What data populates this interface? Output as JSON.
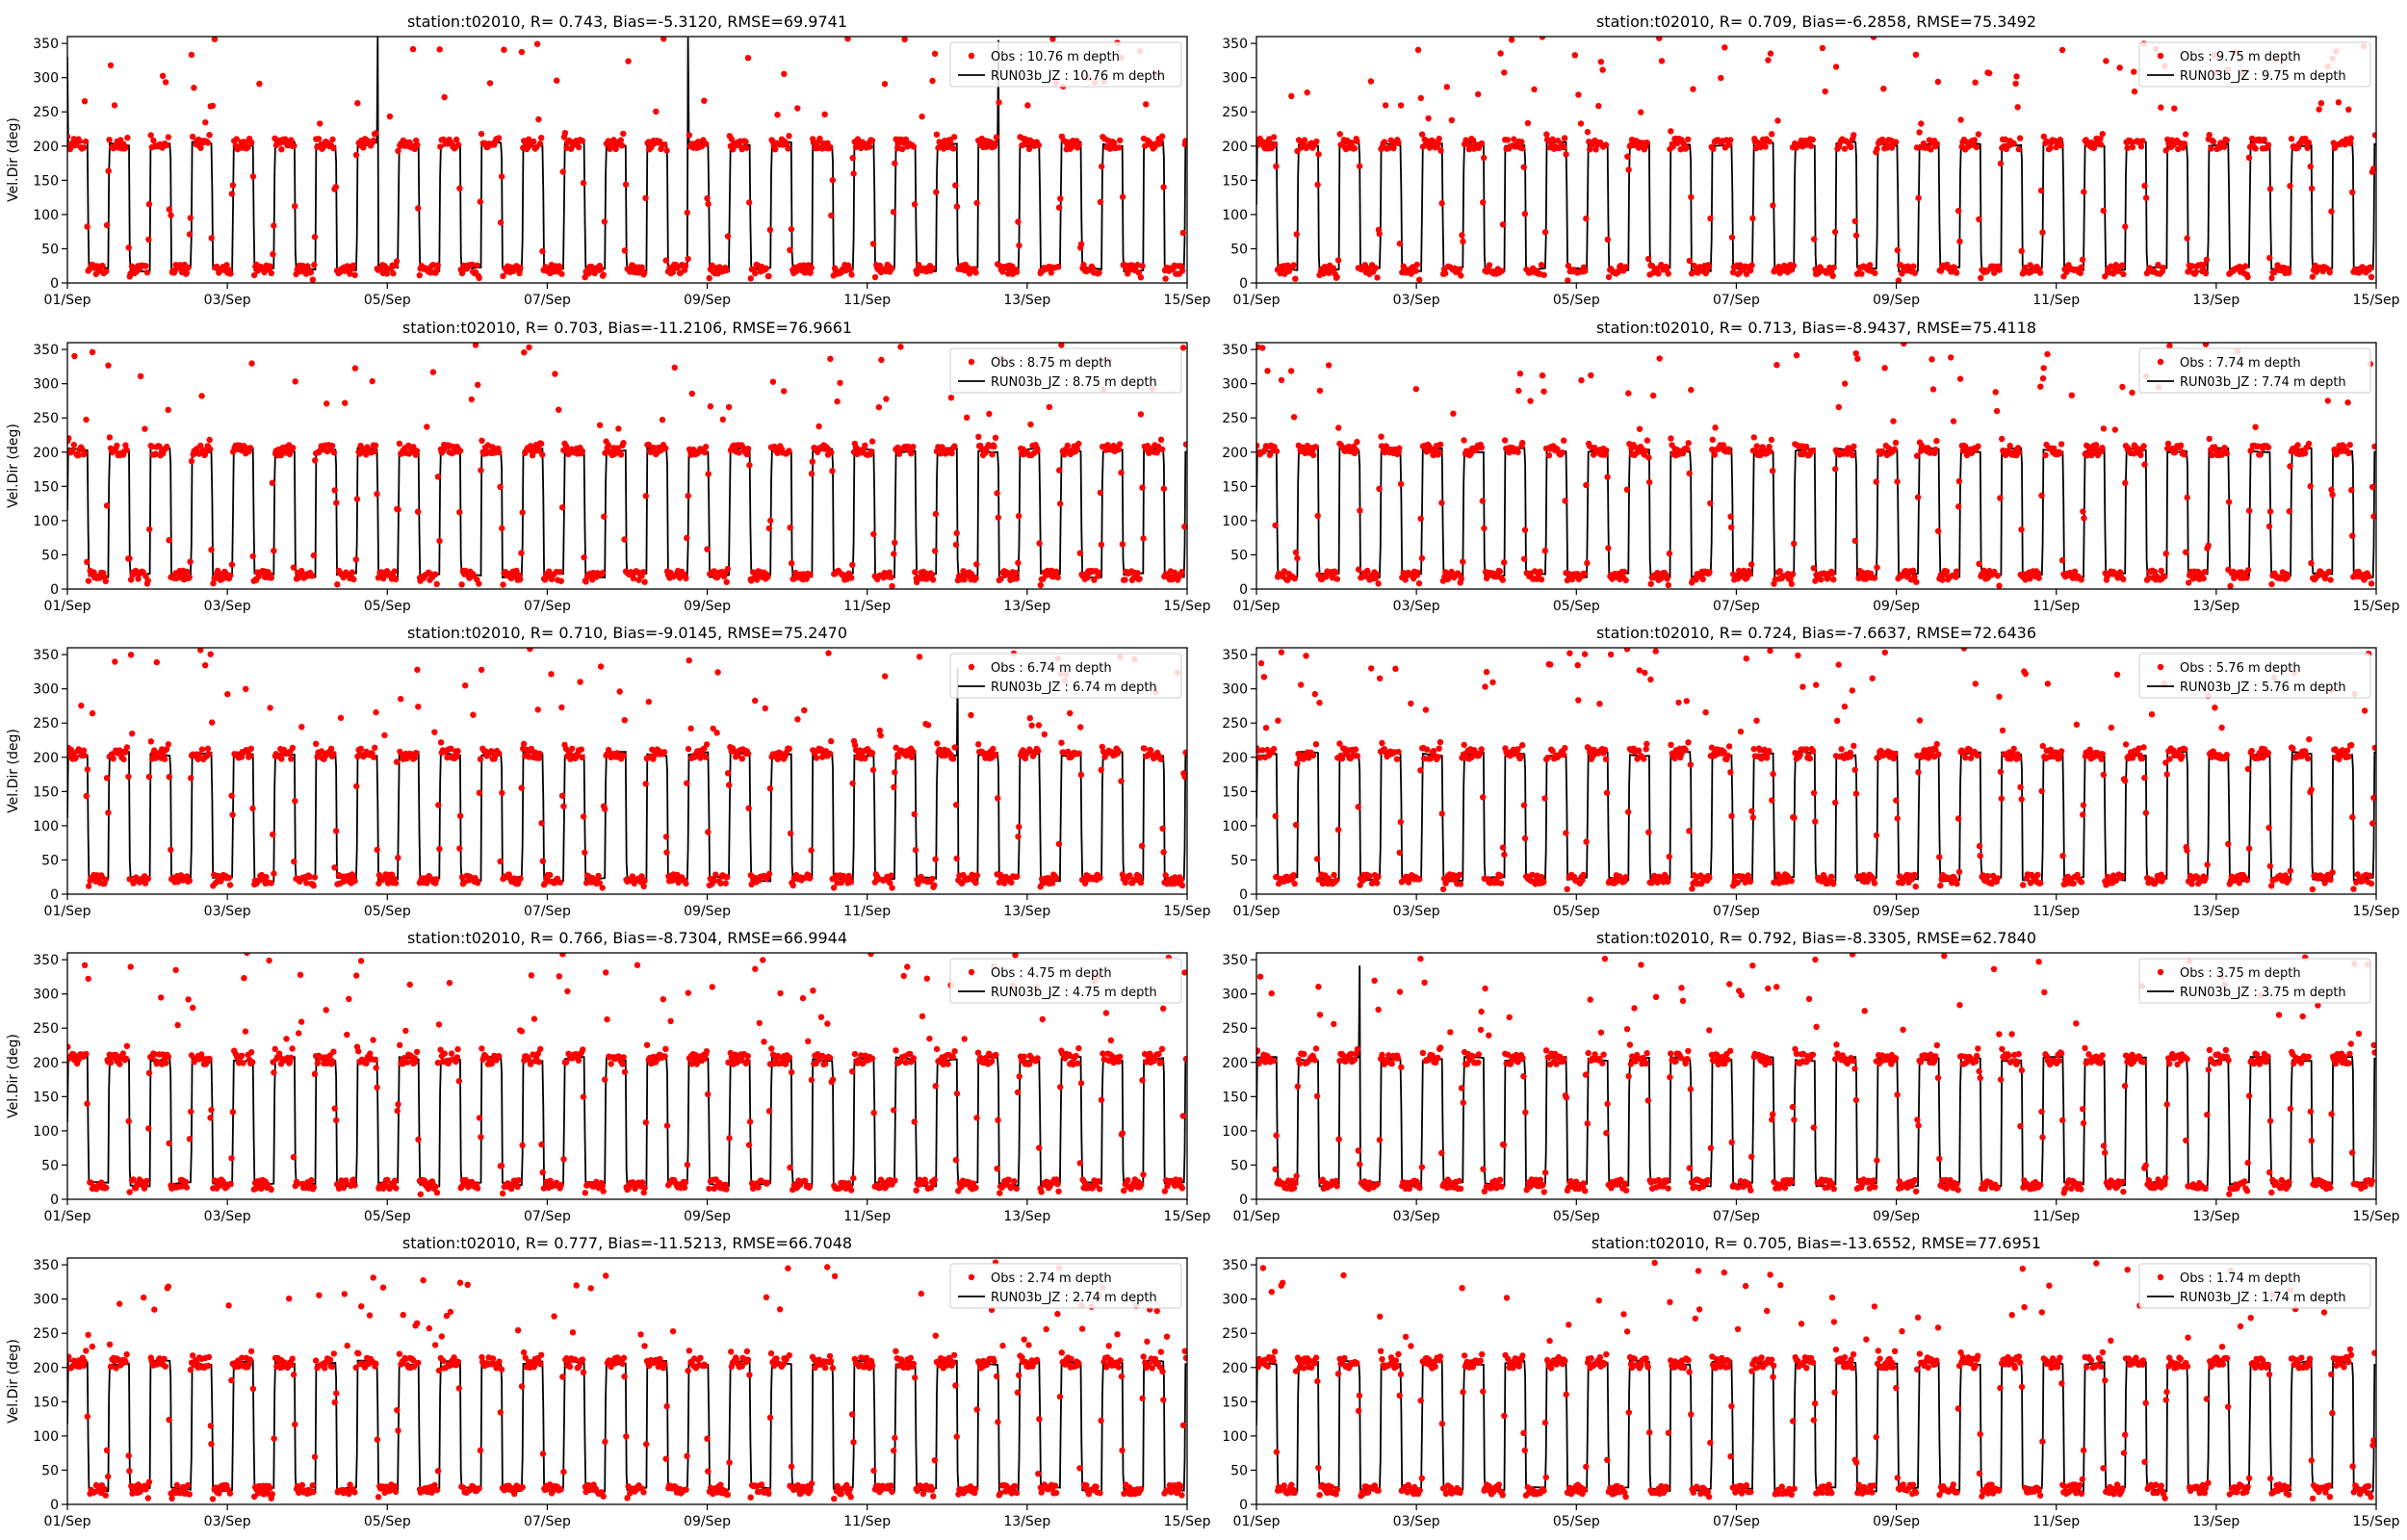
{
  "figure": {
    "background": "#ffffff",
    "obs_color": "#ff0000",
    "model_color": "#000000"
  },
  "chart_data": [
    {
      "type": "scatter",
      "title": "station:t02010, R= 0.743, Bias=-5.3120, RMSE=69.9741",
      "ylabel": "Vel.Dir (deg)",
      "ylim": [
        0,
        360
      ],
      "yticks": [
        0,
        50,
        100,
        150,
        200,
        250,
        300,
        350
      ],
      "xlim": [
        "2024-09-01",
        "2024-09-15"
      ],
      "xticks": [
        "01/Sep",
        "03/Sep",
        "05/Sep",
        "07/Sep",
        "09/Sep",
        "11/Sep",
        "13/Sep",
        "15/Sep"
      ],
      "legend": [
        "Obs : 10.76 m depth",
        "RUN03b_JZ : 10.76 m depth"
      ],
      "legend_loc": "upper right",
      "grid": false,
      "series": [
        {
          "name": "Obs : 10.76 m depth",
          "mode": "markers"
        },
        {
          "name": "RUN03b_JZ : 10.76 m depth",
          "mode": "line"
        }
      ],
      "pattern": {
        "period_hours": 12.42,
        "high_deg": 203,
        "low_deg": 20,
        "high_fraction": 0.5
      }
    },
    {
      "type": "scatter",
      "title": "station:t02010, R= 0.709, Bias=-6.2858, RMSE=75.3492",
      "ylabel": "",
      "ylim": [
        0,
        360
      ],
      "yticks": [
        0,
        50,
        100,
        150,
        200,
        250,
        300,
        350
      ],
      "xlim": [
        "2024-09-01",
        "2024-09-15"
      ],
      "xticks": [
        "01/Sep",
        "03/Sep",
        "05/Sep",
        "07/Sep",
        "09/Sep",
        "11/Sep",
        "13/Sep",
        "15/Sep"
      ],
      "legend": [
        "Obs : 9.75 m depth",
        "RUN03b_JZ : 9.75 m depth"
      ],
      "legend_loc": "upper right",
      "grid": false,
      "series": [
        {
          "name": "Obs : 9.75 m depth",
          "mode": "markers"
        },
        {
          "name": "RUN03b_JZ : 9.75 m depth",
          "mode": "line"
        }
      ],
      "pattern": {
        "period_hours": 12.42,
        "high_deg": 203,
        "low_deg": 20,
        "high_fraction": 0.5
      }
    },
    {
      "type": "scatter",
      "title": "station:t02010, R= 0.703, Bias=-11.2106, RMSE=76.9661",
      "ylabel": "Vel.Dir (deg)",
      "ylim": [
        0,
        360
      ],
      "yticks": [
        0,
        50,
        100,
        150,
        200,
        250,
        300,
        350
      ],
      "xlim": [
        "2024-09-01",
        "2024-09-15"
      ],
      "xticks": [
        "01/Sep",
        "03/Sep",
        "05/Sep",
        "07/Sep",
        "09/Sep",
        "11/Sep",
        "13/Sep",
        "15/Sep"
      ],
      "legend": [
        "Obs : 8.75 m depth",
        "RUN03b_JZ : 8.75 m depth"
      ],
      "legend_loc": "upper right",
      "grid": false,
      "series": [
        {
          "name": "Obs : 8.75 m depth",
          "mode": "markers"
        },
        {
          "name": "RUN03b_JZ : 8.75 m depth",
          "mode": "line"
        }
      ],
      "pattern": {
        "period_hours": 12.42,
        "high_deg": 203,
        "low_deg": 20,
        "high_fraction": 0.5
      }
    },
    {
      "type": "scatter",
      "title": "station:t02010, R= 0.713, Bias=-8.9437, RMSE=75.4118",
      "ylabel": "",
      "ylim": [
        0,
        360
      ],
      "yticks": [
        0,
        50,
        100,
        150,
        200,
        250,
        300,
        350
      ],
      "xlim": [
        "2024-09-01",
        "2024-09-15"
      ],
      "xticks": [
        "01/Sep",
        "03/Sep",
        "05/Sep",
        "07/Sep",
        "09/Sep",
        "11/Sep",
        "13/Sep",
        "15/Sep"
      ],
      "legend": [
        "Obs : 7.74 m depth",
        "RUN03b_JZ : 7.74 m depth"
      ],
      "legend_loc": "upper right",
      "grid": false,
      "series": [
        {
          "name": "Obs : 7.74 m depth",
          "mode": "markers"
        },
        {
          "name": "RUN03b_JZ : 7.74 m depth",
          "mode": "line"
        }
      ],
      "pattern": {
        "period_hours": 12.42,
        "high_deg": 203,
        "low_deg": 20,
        "high_fraction": 0.5
      }
    },
    {
      "type": "scatter",
      "title": "station:t02010, R= 0.710, Bias=-9.0145, RMSE=75.2470",
      "ylabel": "Vel.Dir (deg)",
      "ylim": [
        0,
        360
      ],
      "yticks": [
        0,
        50,
        100,
        150,
        200,
        250,
        300,
        350
      ],
      "xlim": [
        "2024-09-01",
        "2024-09-15"
      ],
      "xticks": [
        "01/Sep",
        "03/Sep",
        "05/Sep",
        "07/Sep",
        "09/Sep",
        "11/Sep",
        "13/Sep",
        "15/Sep"
      ],
      "legend": [
        "Obs : 6.74 m depth",
        "RUN03b_JZ : 6.74 m depth"
      ],
      "legend_loc": "upper right",
      "grid": false,
      "series": [
        {
          "name": "Obs : 6.74 m depth",
          "mode": "markers"
        },
        {
          "name": "RUN03b_JZ : 6.74 m depth",
          "mode": "line"
        }
      ],
      "pattern": {
        "period_hours": 12.42,
        "high_deg": 205,
        "low_deg": 22,
        "high_fraction": 0.5
      }
    },
    {
      "type": "scatter",
      "title": "station:t02010, R= 0.724, Bias=-7.6637, RMSE=72.6436",
      "ylabel": "",
      "ylim": [
        0,
        360
      ],
      "yticks": [
        0,
        50,
        100,
        150,
        200,
        250,
        300,
        350
      ],
      "xlim": [
        "2024-09-01",
        "2024-09-15"
      ],
      "xticks": [
        "01/Sep",
        "03/Sep",
        "05/Sep",
        "07/Sep",
        "09/Sep",
        "11/Sep",
        "13/Sep",
        "15/Sep"
      ],
      "legend": [
        "Obs : 5.76 m depth",
        "RUN03b_JZ : 5.76 m depth"
      ],
      "legend_loc": "upper right",
      "grid": false,
      "series": [
        {
          "name": "Obs : 5.76 m depth",
          "mode": "markers"
        },
        {
          "name": "RUN03b_JZ : 5.76 m depth",
          "mode": "line"
        }
      ],
      "pattern": {
        "period_hours": 12.42,
        "high_deg": 205,
        "low_deg": 22,
        "high_fraction": 0.5
      }
    },
    {
      "type": "scatter",
      "title": "station:t02010, R= 0.766, Bias=-8.7304, RMSE=66.9944",
      "ylabel": "Vel.Dir (deg)",
      "ylim": [
        0,
        360
      ],
      "yticks": [
        0,
        50,
        100,
        150,
        200,
        250,
        300,
        350
      ],
      "xlim": [
        "2024-09-01",
        "2024-09-15"
      ],
      "xticks": [
        "01/Sep",
        "03/Sep",
        "05/Sep",
        "07/Sep",
        "09/Sep",
        "11/Sep",
        "13/Sep",
        "15/Sep"
      ],
      "legend": [
        "Obs : 4.75 m depth",
        "RUN03b_JZ : 4.75 m depth"
      ],
      "legend_loc": "upper right",
      "grid": false,
      "series": [
        {
          "name": "Obs : 4.75 m depth",
          "mode": "markers"
        },
        {
          "name": "RUN03b_JZ : 4.75 m depth",
          "mode": "line"
        }
      ],
      "pattern": {
        "period_hours": 12.42,
        "high_deg": 205,
        "low_deg": 22,
        "high_fraction": 0.5
      }
    },
    {
      "type": "scatter",
      "title": "station:t02010, R= 0.792, Bias=-8.3305, RMSE=62.7840",
      "ylabel": "",
      "ylim": [
        0,
        360
      ],
      "yticks": [
        0,
        50,
        100,
        150,
        200,
        250,
        300,
        350
      ],
      "xlim": [
        "2024-09-01",
        "2024-09-15"
      ],
      "xticks": [
        "01/Sep",
        "03/Sep",
        "05/Sep",
        "07/Sep",
        "09/Sep",
        "11/Sep",
        "13/Sep",
        "15/Sep"
      ],
      "legend": [
        "Obs : 3.75 m depth",
        "RUN03b_JZ : 3.75 m depth"
      ],
      "legend_loc": "upper right",
      "grid": false,
      "series": [
        {
          "name": "Obs : 3.75 m depth",
          "mode": "markers"
        },
        {
          "name": "RUN03b_JZ : 3.75 m depth",
          "mode": "line"
        }
      ],
      "pattern": {
        "period_hours": 12.42,
        "high_deg": 205,
        "low_deg": 22,
        "high_fraction": 0.5
      }
    },
    {
      "type": "scatter",
      "title": "station:t02010, R= 0.777, Bias=-11.5213, RMSE=66.7048",
      "ylabel": "Vel.Dir (deg)",
      "ylim": [
        0,
        360
      ],
      "yticks": [
        0,
        50,
        100,
        150,
        200,
        250,
        300,
        350
      ],
      "xlim": [
        "2024-09-01",
        "2024-09-15"
      ],
      "xticks": [
        "01/Sep",
        "03/Sep",
        "05/Sep",
        "07/Sep",
        "09/Sep",
        "11/Sep",
        "13/Sep",
        "15/Sep"
      ],
      "legend": [
        "Obs : 2.74 m depth",
        "RUN03b_JZ : 2.74 m depth"
      ],
      "legend_loc": "upper right",
      "grid": false,
      "series": [
        {
          "name": "Obs : 2.74 m depth",
          "mode": "markers"
        },
        {
          "name": "RUN03b_JZ : 2.74 m depth",
          "mode": "line"
        }
      ],
      "pattern": {
        "period_hours": 12.42,
        "high_deg": 207,
        "low_deg": 22,
        "high_fraction": 0.5
      }
    },
    {
      "type": "scatter",
      "title": "station:t02010, R= 0.705, Bias=-13.6552, RMSE=77.6951",
      "ylabel": "",
      "ylim": [
        0,
        360
      ],
      "yticks": [
        0,
        50,
        100,
        150,
        200,
        250,
        300,
        350
      ],
      "xlim": [
        "2024-09-01",
        "2024-09-15"
      ],
      "xticks": [
        "01/Sep",
        "03/Sep",
        "05/Sep",
        "07/Sep",
        "09/Sep",
        "11/Sep",
        "13/Sep",
        "15/Sep"
      ],
      "legend": [
        "Obs : 1.74 m depth",
        "RUN03b_JZ : 1.74 m depth"
      ],
      "legend_loc": "upper right",
      "grid": false,
      "series": [
        {
          "name": "Obs : 1.74 m depth",
          "mode": "markers"
        },
        {
          "name": "RUN03b_JZ : 1.74 m depth",
          "mode": "line"
        }
      ],
      "pattern": {
        "period_hours": 12.42,
        "high_deg": 207,
        "low_deg": 22,
        "high_fraction": 0.5
      }
    }
  ]
}
